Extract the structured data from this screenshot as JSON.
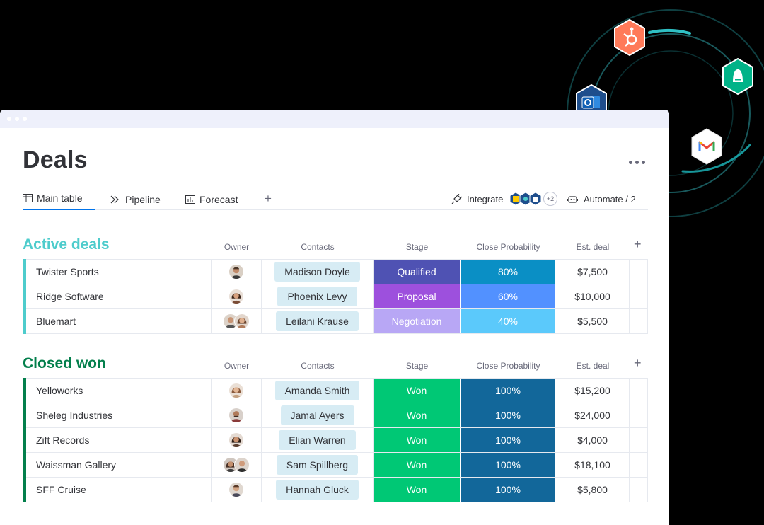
{
  "page": {
    "title": "Deals"
  },
  "tabs": [
    {
      "label": "Main table",
      "icon": "table-icon"
    },
    {
      "label": "Pipeline",
      "icon": "pipeline-icon"
    },
    {
      "label": "Forecast",
      "icon": "chart-icon"
    }
  ],
  "toolbar": {
    "add_tab": "+",
    "integrate_label": "Integrate",
    "integration_extra": "+2",
    "automate_label": "Automate / 2"
  },
  "columns": {
    "owner": "Owner",
    "contacts": "Contacts",
    "stage": "Stage",
    "probability": "Close Probability",
    "deal": "Est. deal",
    "add": "+"
  },
  "colors": {
    "active_group": "#4ecccc",
    "closed_group": "#037f4c",
    "qualified": "#4f52b3",
    "proposal": "#9d50dd",
    "negotiation": "#b8a7f5",
    "won": "#00c875",
    "prob_80": "#0a8fc5",
    "prob_60": "#5291ff",
    "prob_40": "#5bc9fb",
    "prob_100": "#12679a"
  },
  "groups": [
    {
      "title": "Active deals",
      "rows": [
        {
          "name": "Twister Sports",
          "contact": "Madison Doyle",
          "stage": "Qualified",
          "probability": "80%",
          "deal": "$7,500"
        },
        {
          "name": "Ridge Software",
          "contact": "Phoenix Levy",
          "stage": "Proposal",
          "probability": "60%",
          "deal": "$10,000"
        },
        {
          "name": "Bluemart",
          "contact": "Leilani Krause",
          "stage": "Negotiation",
          "probability": "40%",
          "deal": "$5,500"
        }
      ]
    },
    {
      "title": "Closed won",
      "rows": [
        {
          "name": "Yelloworks",
          "contact": "Amanda Smith",
          "stage": "Won",
          "probability": "100%",
          "deal": "$15,200"
        },
        {
          "name": "Sheleg Industries",
          "contact": "Jamal Ayers",
          "stage": "Won",
          "probability": "100%",
          "deal": "$24,000"
        },
        {
          "name": "Zift Records",
          "contact": "Elian Warren",
          "stage": "Won",
          "probability": "100%",
          "deal": "$4,000"
        },
        {
          "name": "Waissman Gallery",
          "contact": "Sam Spillberg",
          "stage": "Won",
          "probability": "100%",
          "deal": "$18,100"
        },
        {
          "name": "SFF Cruise",
          "contact": "Hannah Gluck",
          "stage": "Won",
          "probability": "100%",
          "deal": "$5,800"
        }
      ]
    }
  ],
  "integration_icons": [
    "hubspot-icon",
    "aircall-icon",
    "outlook-icon",
    "gmail-icon"
  ]
}
